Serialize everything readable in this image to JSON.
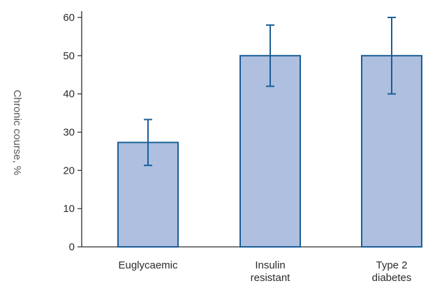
{
  "chart_data": {
    "type": "bar",
    "title": "",
    "xlabel": "",
    "ylabel": "Chronic course, %",
    "ylim": [
      0,
      60
    ],
    "yticks": [
      0,
      10,
      20,
      30,
      40,
      50,
      60
    ],
    "categories": [
      [
        "Euglycaemic"
      ],
      [
        "Insulin",
        "resistant"
      ],
      [
        "Type 2",
        "diabetes"
      ]
    ],
    "values": [
      27.3,
      50,
      50
    ],
    "error_low": [
      21.3,
      42,
      40
    ],
    "error_high": [
      33.3,
      58,
      60
    ],
    "grid": false,
    "legend": "none",
    "colors": {
      "bar_fill": "#aebfdf",
      "bar_stroke": "#1a5e96",
      "error_bar": "#1a5e96",
      "axis": "#2b2b2b"
    }
  }
}
